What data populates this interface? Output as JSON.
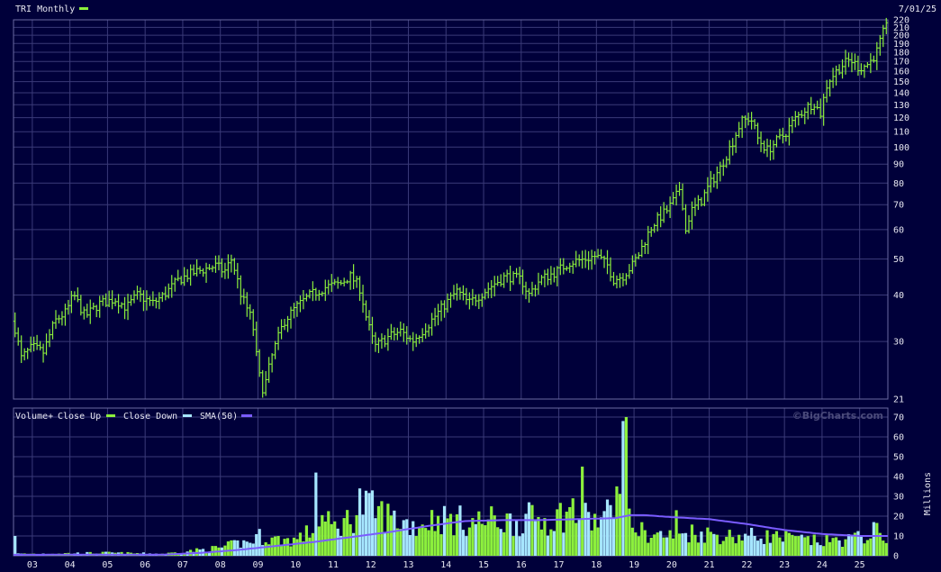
{
  "header": {
    "title": "TRI Monthly",
    "date": "7/01/25"
  },
  "volume_legend": {
    "volume": "Volume+",
    "close_up": "Close Up",
    "close_down": "Close Down",
    "sma": "SMA(50)",
    "units": "Millions"
  },
  "watermark": "©BigCharts.com",
  "colors": {
    "background": "#00003a",
    "grid": "#3a3a78",
    "panel_border": "#6a6aa0",
    "price": "#8cf03c",
    "close_up": "#8cf03c",
    "close_down": "#a6e6ff",
    "sma": "#7a5cff",
    "text": "#e6e6f0"
  },
  "chart_data": [
    {
      "type": "line",
      "name": "price",
      "scale": "log",
      "ylim": [
        21,
        220
      ],
      "xlim": [
        2002.5,
        2025.75
      ],
      "y_ticks": [
        21,
        30,
        40,
        50,
        60,
        70,
        80,
        90,
        100,
        110,
        120,
        130,
        140,
        150,
        160,
        170,
        180,
        190,
        200,
        210,
        220
      ],
      "x_ticks": [
        "03",
        "04",
        "05",
        "06",
        "07",
        "08",
        "09",
        "10",
        "11",
        "12",
        "13",
        "14",
        "15",
        "16",
        "17",
        "18",
        "19",
        "20",
        "21",
        "22",
        "23",
        "24",
        "25"
      ],
      "anchors": [
        [
          2002.5,
          34
        ],
        [
          2002.7,
          27
        ],
        [
          2003.0,
          29
        ],
        [
          2003.3,
          28
        ],
        [
          2003.6,
          34
        ],
        [
          2003.9,
          36
        ],
        [
          2004.1,
          40
        ],
        [
          2004.4,
          35
        ],
        [
          2004.8,
          38
        ],
        [
          2005.2,
          39
        ],
        [
          2005.5,
          37
        ],
        [
          2005.8,
          40
        ],
        [
          2006.2,
          38
        ],
        [
          2006.5,
          40
        ],
        [
          2006.9,
          44
        ],
        [
          2007.3,
          46
        ],
        [
          2007.6,
          47
        ],
        [
          2007.9,
          48
        ],
        [
          2008.1,
          46
        ],
        [
          2008.3,
          50
        ],
        [
          2008.55,
          40
        ],
        [
          2008.85,
          34
        ],
        [
          2009.0,
          25
        ],
        [
          2009.15,
          22
        ],
        [
          2009.4,
          28
        ],
        [
          2009.7,
          34
        ],
        [
          2010.0,
          37
        ],
        [
          2010.4,
          40
        ],
        [
          2010.8,
          42
        ],
        [
          2011.2,
          43
        ],
        [
          2011.45,
          45
        ],
        [
          2011.7,
          42
        ],
        [
          2011.9,
          34
        ],
        [
          2012.1,
          29
        ],
        [
          2012.5,
          31
        ],
        [
          2012.8,
          32
        ],
        [
          2013.1,
          30
        ],
        [
          2013.5,
          33
        ],
        [
          2013.9,
          37
        ],
        [
          2014.3,
          41
        ],
        [
          2014.6,
          38
        ],
        [
          2014.9,
          40
        ],
        [
          2015.3,
          43
        ],
        [
          2015.6,
          45
        ],
        [
          2016.0,
          44
        ],
        [
          2016.2,
          40
        ],
        [
          2016.5,
          44
        ],
        [
          2016.9,
          46
        ],
        [
          2017.3,
          49
        ],
        [
          2017.7,
          50
        ],
        [
          2018.0,
          51
        ],
        [
          2018.3,
          48
        ],
        [
          2018.45,
          44
        ],
        [
          2018.7,
          45
        ],
        [
          2018.95,
          48
        ],
        [
          2019.15,
          52
        ],
        [
          2019.5,
          62
        ],
        [
          2019.9,
          68
        ],
        [
          2020.1,
          73
        ],
        [
          2020.25,
          79
        ],
        [
          2020.35,
          58
        ],
        [
          2020.5,
          67
        ],
        [
          2020.8,
          72
        ],
        [
          2021.0,
          79
        ],
        [
          2021.3,
          88
        ],
        [
          2021.6,
          102
        ],
        [
          2021.85,
          117
        ],
        [
          2022.1,
          120
        ],
        [
          2022.3,
          105
        ],
        [
          2022.55,
          98
        ],
        [
          2022.8,
          104
        ],
        [
          2023.0,
          108
        ],
        [
          2023.25,
          118
        ],
        [
          2023.6,
          128
        ],
        [
          2023.8,
          132
        ],
        [
          2023.95,
          122
        ],
        [
          2024.15,
          150
        ],
        [
          2024.5,
          165
        ],
        [
          2024.75,
          172
        ],
        [
          2025.0,
          163
        ],
        [
          2025.25,
          168
        ],
        [
          2025.45,
          180
        ],
        [
          2025.6,
          200
        ],
        [
          2025.7,
          210
        ]
      ]
    },
    {
      "type": "bar",
      "name": "volume",
      "ylabel": "Millions",
      "ylim": [
        0,
        70
      ],
      "y_ticks": [
        0,
        10,
        20,
        30,
        40,
        50,
        60,
        70
      ],
      "xlim": [
        2002.5,
        2025.75
      ],
      "anchors": [
        [
          2002.5,
          10
        ],
        [
          2002.6,
          1
        ],
        [
          2003.0,
          1
        ],
        [
          2005.0,
          1.5
        ],
        [
          2006.5,
          1
        ],
        [
          2007.0,
          2
        ],
        [
          2007.5,
          3
        ],
        [
          2008.0,
          4
        ],
        [
          2008.4,
          6
        ],
        [
          2008.8,
          7
        ],
        [
          2009.0,
          10
        ],
        [
          2009.5,
          8
        ],
        [
          2010.0,
          8
        ],
        [
          2010.4,
          12
        ],
        [
          2010.6,
          20
        ],
        [
          2011.0,
          14
        ],
        [
          2011.4,
          18
        ],
        [
          2011.8,
          25
        ],
        [
          2012.2,
          22
        ],
        [
          2012.7,
          18
        ],
        [
          2013.2,
          15
        ],
        [
          2013.7,
          19
        ],
        [
          2014.2,
          18
        ],
        [
          2014.8,
          17
        ],
        [
          2015.3,
          18
        ],
        [
          2015.8,
          17
        ],
        [
          2016.3,
          19
        ],
        [
          2016.8,
          18
        ],
        [
          2017.2,
          22
        ],
        [
          2017.6,
          20
        ],
        [
          2018.0,
          17
        ],
        [
          2018.4,
          22
        ],
        [
          2018.6,
          25
        ],
        [
          2018.9,
          16
        ],
        [
          2019.3,
          11
        ],
        [
          2020.0,
          10
        ],
        [
          2020.5,
          12
        ],
        [
          2021.0,
          11
        ],
        [
          2021.5,
          10
        ],
        [
          2022.0,
          10
        ],
        [
          2022.5,
          10
        ],
        [
          2023.0,
          9
        ],
        [
          2023.5,
          8
        ],
        [
          2024.0,
          7
        ],
        [
          2024.5,
          8
        ],
        [
          2025.0,
          9
        ],
        [
          2025.3,
          12
        ],
        [
          2025.7,
          11
        ]
      ],
      "spikes": [
        [
          2002.52,
          10
        ],
        [
          2010.55,
          42
        ],
        [
          2011.7,
          34
        ],
        [
          2017.4,
          29
        ],
        [
          2017.65,
          45
        ],
        [
          2018.55,
          35
        ],
        [
          2018.72,
          68
        ],
        [
          2018.82,
          70
        ],
        [
          2020.15,
          23
        ],
        [
          2025.35,
          17
        ]
      ],
      "sma": [
        [
          2002.5,
          0.5
        ],
        [
          2006.5,
          0.6
        ],
        [
          2007.5,
          1.5
        ],
        [
          2008.5,
          3
        ],
        [
          2009.5,
          5
        ],
        [
          2010.5,
          7
        ],
        [
          2011.5,
          9.5
        ],
        [
          2012.5,
          12
        ],
        [
          2013.5,
          15
        ],
        [
          2014.5,
          17.5
        ],
        [
          2015.5,
          18
        ],
        [
          2016.5,
          18
        ],
        [
          2017.5,
          18.5
        ],
        [
          2018.5,
          19
        ],
        [
          2018.9,
          20.5
        ],
        [
          2019.3,
          20.5
        ],
        [
          2020.0,
          19.5
        ],
        [
          2021.0,
          18.5
        ],
        [
          2022.0,
          16
        ],
        [
          2023.0,
          13
        ],
        [
          2024.0,
          11
        ],
        [
          2025.0,
          10
        ],
        [
          2025.7,
          10
        ]
      ]
    }
  ]
}
